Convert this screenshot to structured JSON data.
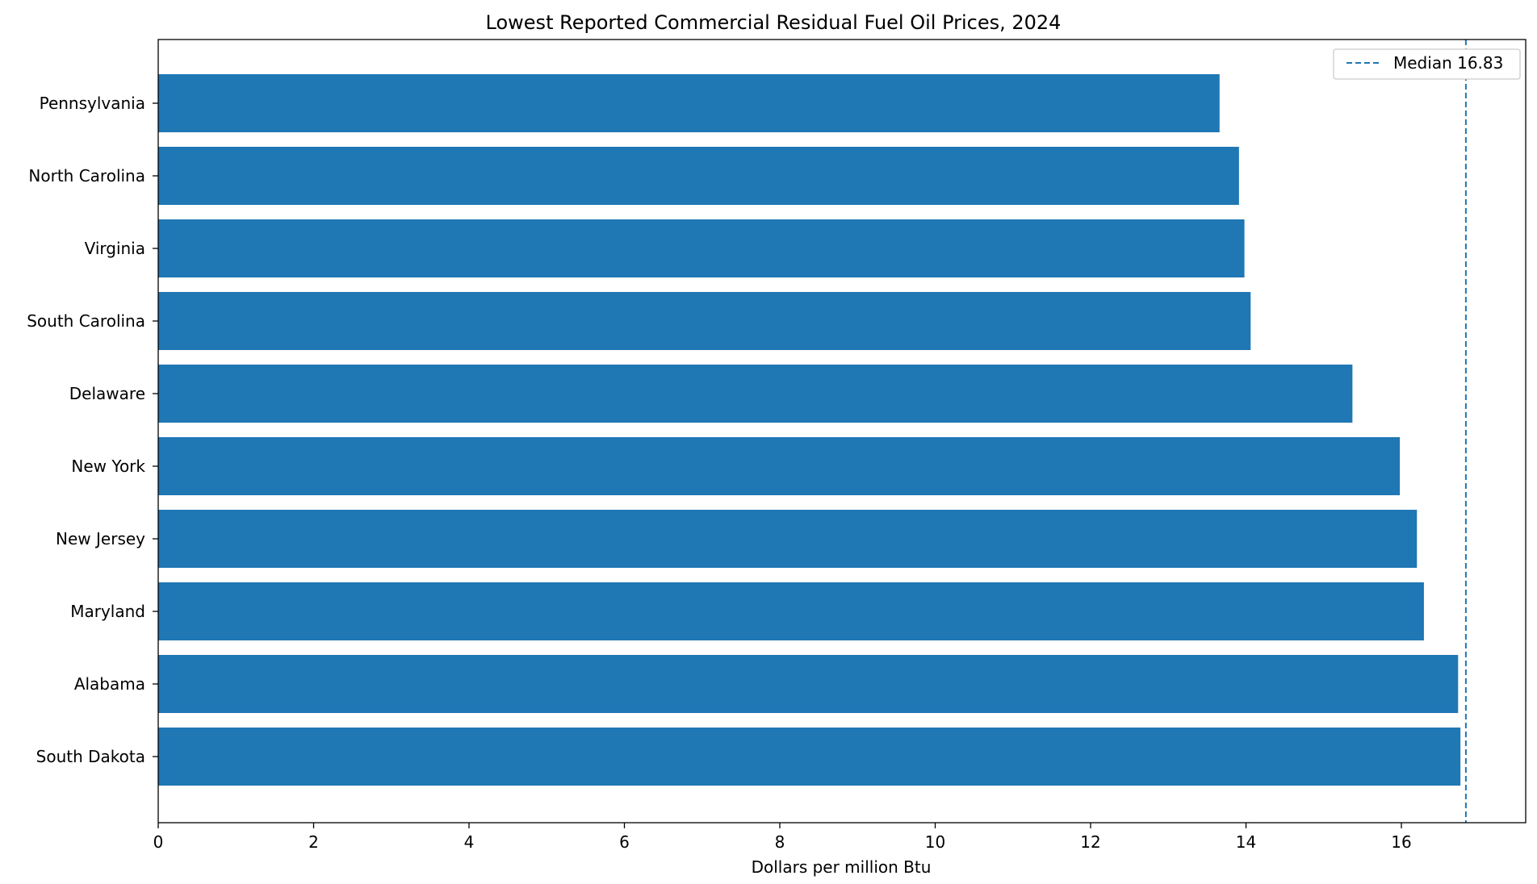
{
  "chart_data": {
    "type": "bar",
    "orientation": "horizontal",
    "title": "Lowest Reported Commercial Residual Fuel Oil Prices, 2024",
    "xlabel": "Dollars per million Btu",
    "ylabel": "",
    "categories": [
      "Pennsylvania",
      "North Carolina",
      "Virginia",
      "South Carolina",
      "Delaware",
      "New York",
      "New Jersey",
      "Maryland",
      "Alabama",
      "South Dakota"
    ],
    "values": [
      13.66,
      13.91,
      13.98,
      14.06,
      15.37,
      15.98,
      16.2,
      16.29,
      16.73,
      16.76
    ],
    "xlim": [
      0,
      17.6
    ],
    "xticks": [
      0,
      2,
      4,
      6,
      8,
      10,
      12,
      14,
      16
    ],
    "grid": false,
    "bar_color": "#1f77b4",
    "reference_line": {
      "value": 16.83,
      "label": "Median 16.83",
      "style": "dashed",
      "color": "#1f77b4"
    },
    "legend": {
      "position": "top-right",
      "entries": [
        "Median 16.83"
      ]
    }
  }
}
